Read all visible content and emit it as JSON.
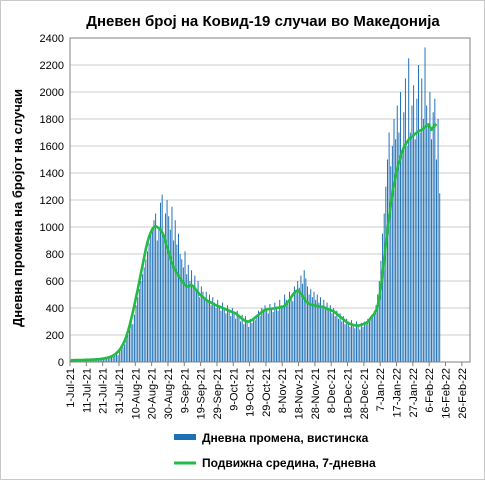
{
  "chart_data": {
    "type": "bar",
    "title": "Дневен број на Ковид-19 случаи во Македонија",
    "ylabel": "Дневна промена на бројот на случаи",
    "xlabel": "",
    "ylim": [
      0,
      2400
    ],
    "yticks": [
      0,
      200,
      400,
      600,
      800,
      1000,
      1200,
      1400,
      1600,
      1800,
      2000,
      2200,
      2400
    ],
    "grid": true,
    "legend_position": "bottom",
    "x_tick_labels": [
      "1-Jul-21",
      "11-Jul-21",
      "21-Jul-21",
      "31-Jul-21",
      "10-Aug-21",
      "20-Aug-21",
      "30-Aug-21",
      "9-Sep-21",
      "19-Sep-21",
      "29-Sep-21",
      "9-Oct-21",
      "19-Oct-21",
      "29-Oct-21",
      "8-Nov-21",
      "18-Nov-21",
      "28-Nov-21",
      "8-Dec-21",
      "18-Dec-21",
      "28-Dec-21",
      "7-Jan-22",
      "17-Jan-22",
      "27-Jan-22",
      "6-Feb-22",
      "16-Feb-22",
      "26-Feb-22"
    ],
    "x_range": [
      "2021-07-01",
      "2022-03-03"
    ],
    "series": [
      {
        "name": "Дневна промена, вистинска",
        "type": "bar",
        "color": "#1f6fb5",
        "x_start": "2021-07-01",
        "values": [
          12,
          15,
          9,
          18,
          14,
          10,
          16,
          20,
          13,
          17,
          14,
          11,
          19,
          22,
          16,
          21,
          18,
          13,
          25,
          28,
          20,
          30,
          33,
          27,
          40,
          45,
          38,
          55,
          60,
          52,
          80,
          95,
          110,
          130,
          170,
          200,
          240,
          300,
          280,
          350,
          420,
          480,
          540,
          600,
          650,
          700,
          760,
          820,
          880,
          940,
          980,
          1050,
          1100,
          900,
          1000,
          1180,
          1240,
          950,
          1100,
          1200,
          1080,
          980,
          1150,
          900,
          1050,
          870,
          950,
          800,
          760,
          700,
          820,
          650,
          720,
          600,
          680,
          560,
          640,
          520,
          600,
          480,
          560,
          520,
          480,
          520,
          450,
          500,
          420,
          480,
          440,
          400,
          460,
          420,
          380,
          440,
          400,
          360,
          420,
          380,
          340,
          400,
          360,
          320,
          380,
          340,
          300,
          350,
          280,
          340,
          300,
          260,
          320,
          290,
          330,
          310,
          350,
          380,
          340,
          400,
          370,
          420,
          390,
          360,
          430,
          400,
          370,
          440,
          410,
          380,
          460,
          420,
          400,
          500,
          460,
          430,
          520,
          480,
          450,
          560,
          520,
          600,
          550,
          640,
          580,
          680,
          620,
          560,
          500,
          540,
          480,
          520,
          460,
          500,
          440,
          480,
          420,
          460,
          400,
          440,
          380,
          420,
          360,
          400,
          340,
          380,
          320,
          360,
          300,
          340,
          280,
          320,
          300,
          260,
          310,
          280,
          250,
          300,
          270,
          240,
          290,
          260,
          300,
          280,
          320,
          300,
          340,
          330,
          380,
          420,
          500,
          600,
          750,
          950,
          1100,
          1300,
          1500,
          1700,
          1450,
          1600,
          1800,
          1650,
          1900,
          1700,
          2000,
          1550,
          1850,
          2100,
          1600,
          2250,
          1700,
          1900,
          2050,
          1650,
          1950,
          2200,
          1700,
          2100,
          1800,
          2330,
          1900,
          1750,
          2000,
          1650,
          1850,
          1950,
          1500,
          1800,
          1250
        ]
      },
      {
        "name": "Подвижна средина, 7-дневна",
        "type": "line",
        "color": "#22bb44",
        "x_start": "2021-07-01",
        "values": [
          13,
          13,
          13,
          14,
          14,
          14,
          15,
          15,
          15,
          16,
          16,
          16,
          17,
          18,
          18,
          19,
          20,
          21,
          22,
          24,
          26,
          28,
          30,
          33,
          37,
          42,
          48,
          56,
          66,
          78,
          92,
          110,
          132,
          158,
          190,
          228,
          270,
          318,
          370,
          425,
          482,
          540,
          600,
          660,
          720,
          780,
          840,
          890,
          930,
          960,
          985,
          1000,
          1005,
          1000,
          990,
          980,
          960,
          930,
          890,
          850,
          810,
          770,
          730,
          700,
          680,
          660,
          640,
          620,
          600,
          585,
          570,
          560,
          560,
          565,
          570,
          560,
          545,
          530,
          515,
          500,
          490,
          480,
          470,
          460,
          450,
          445,
          440,
          432,
          425,
          420,
          415,
          410,
          405,
          400,
          395,
          390,
          385,
          380,
          375,
          370,
          365,
          360,
          350,
          340,
          330,
          320,
          310,
          305,
          300,
          300,
          305,
          310,
          320,
          330,
          340,
          350,
          360,
          370,
          380,
          385,
          390,
          392,
          394,
          395,
          396,
          398,
          400,
          402,
          404,
          406,
          410,
          418,
          430,
          445,
          460,
          480,
          500,
          515,
          525,
          530,
          520,
          505,
          490,
          470,
          450,
          440,
          430,
          425,
          422,
          420,
          418,
          415,
          412,
          410,
          408,
          405,
          400,
          395,
          390,
          385,
          380,
          375,
          365,
          355,
          345,
          335,
          325,
          315,
          305,
          295,
          288,
          282,
          278,
          275,
          272,
          270,
          270,
          272,
          275,
          280,
          285,
          290,
          300,
          315,
          330,
          345,
          360,
          380,
          420,
          480,
          560,
          660,
          770,
          880,
          980,
          1080,
          1170,
          1250,
          1320,
          1380,
          1430,
          1480,
          1520,
          1560,
          1590,
          1610,
          1630,
          1650,
          1660,
          1670,
          1680,
          1690,
          1700,
          1710,
          1715,
          1720,
          1730,
          1740,
          1750,
          1760,
          1740,
          1720,
          1740,
          1760,
          1750
        ]
      }
    ]
  }
}
